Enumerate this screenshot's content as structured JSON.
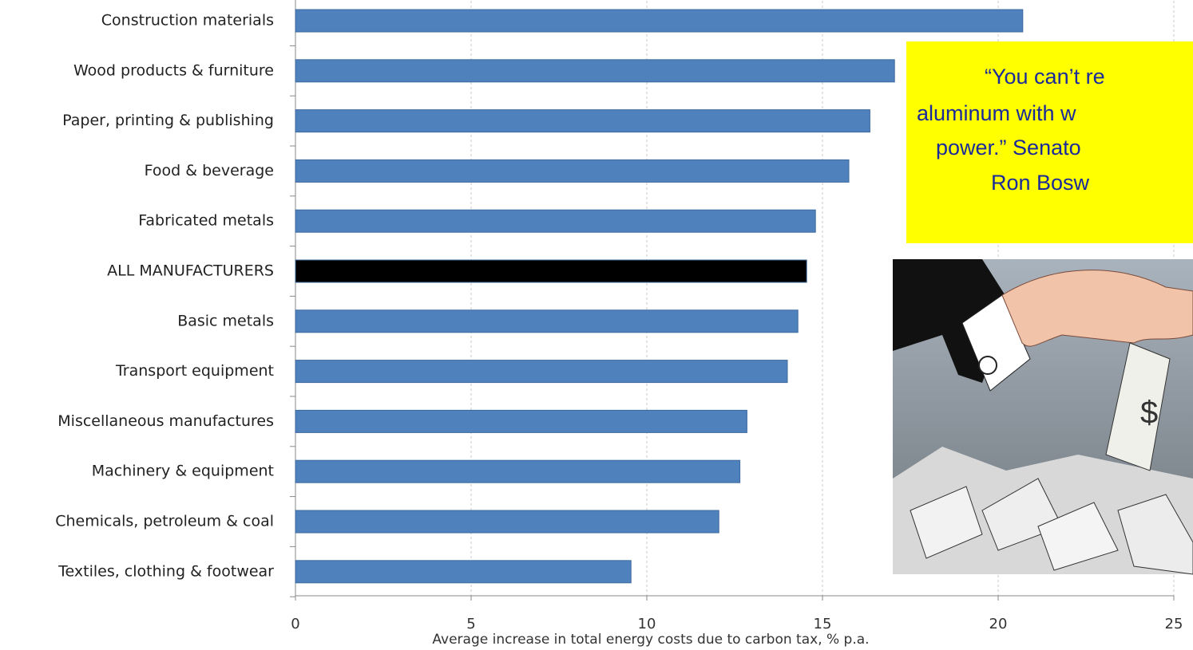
{
  "chart_data": {
    "type": "bar",
    "orientation": "horizontal",
    "categories": [
      "Construction materials",
      "Wood products & furniture",
      "Paper, printing & publishing",
      "Food & beverage",
      "Fabricated metals",
      "ALL MANUFACTURERS",
      "Basic metals",
      "Transport equipment",
      "Miscellaneous manufactures",
      "Machinery & equipment",
      "Chemicals, petroleum & coal",
      "Textiles, clothing & footwear"
    ],
    "values": [
      20.7,
      17.05,
      16.35,
      15.75,
      14.8,
      14.55,
      14.3,
      14.0,
      12.85,
      12.65,
      12.05,
      9.55
    ],
    "colors": [
      "#4f81bd",
      "#4f81bd",
      "#4f81bd",
      "#4f81bd",
      "#4f81bd",
      "#000000",
      "#4f81bd",
      "#4f81bd",
      "#4f81bd",
      "#4f81bd",
      "#4f81bd",
      "#4f81bd"
    ],
    "x_label": "Average increase in total energy costs due to carbon tax, % p.a.",
    "xlim": [
      0,
      25
    ],
    "xticks": [
      0,
      5,
      10,
      15,
      20,
      25
    ],
    "grid": true,
    "annotation": [
      "“You can’t re",
      "aluminum with w",
      "power.”  Senato",
      "Ron Bosw"
    ]
  }
}
